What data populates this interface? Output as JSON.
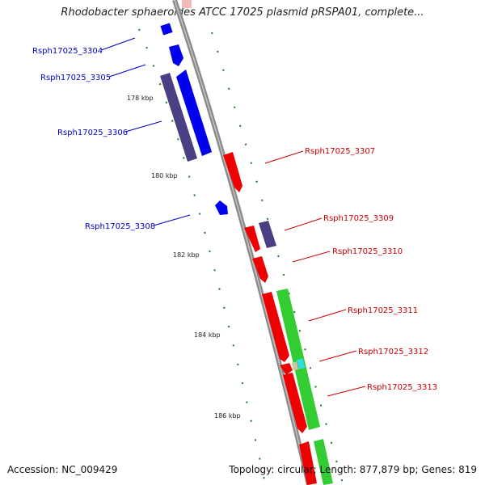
{
  "header": {
    "title": "Rhodobacter sphaeroides ATCC 17025 plasmid pRSPA01, complete..."
  },
  "footer": {
    "accession": "Accession: NC_009429",
    "summary": "Topology: circular; Length: 877,879 bp; Genes: 819"
  },
  "ticks": [
    {
      "label": "178 kbp"
    },
    {
      "label": "180 kbp"
    },
    {
      "label": "182 kbp"
    },
    {
      "label": "184 kbp"
    },
    {
      "label": "186 kbp"
    }
  ],
  "genes_left": [
    {
      "label": "Rsph17025_3304",
      "color": "#0000cc"
    },
    {
      "label": "Rsph17025_3305",
      "color": "#0000cc"
    },
    {
      "label": "Rsph17025_3306",
      "color": "#0000cc"
    },
    {
      "label": "Rsph17025_3308",
      "color": "#0000cc"
    }
  ],
  "genes_right": [
    {
      "label": "Rsph17025_3307",
      "color": "#cc0000"
    },
    {
      "label": "Rsph17025_3309",
      "color": "#cc0000"
    },
    {
      "label": "Rsph17025_3310",
      "color": "#cc0000"
    },
    {
      "label": "Rsph17025_3311",
      "color": "#cc0000"
    },
    {
      "label": "Rsph17025_3312",
      "color": "#cc0000"
    },
    {
      "label": "Rsph17025_3313",
      "color": "#cc0000"
    }
  ],
  "colors": {
    "backbone": "#8a8a8a",
    "forward_cds": "#ee0000",
    "reverse_cds": "#0000ee",
    "cds_purple": "#4a3f82",
    "cds_green": "#33cc33",
    "misc_cyan": "#33dddd",
    "tick_green": "#1a7a1a"
  }
}
